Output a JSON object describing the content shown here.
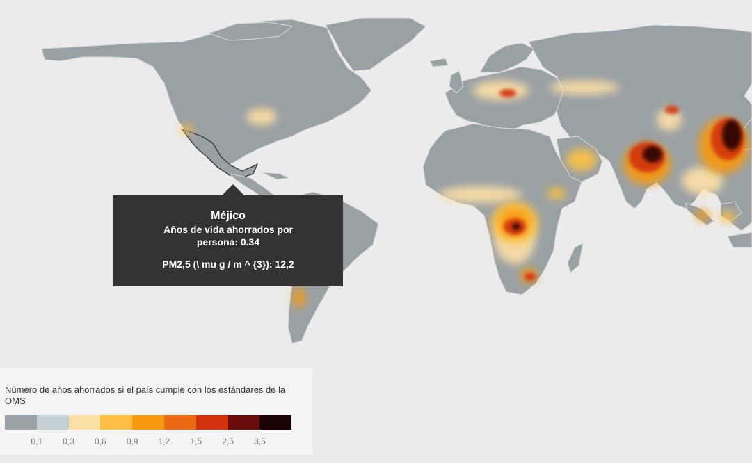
{
  "map": {
    "background_color": "#ebebeb",
    "land_color": "#9aa1a4",
    "border_color": "#d9dcdd",
    "highlighted_country": "Méjico"
  },
  "tooltip": {
    "country": "Méjico",
    "years_line1": "Años de vida ahorrados por",
    "years_line2": "persona: 0.34",
    "pm_line": "PM2,5 (\\ mu g / m ^ {3}): 12,2"
  },
  "legend": {
    "title": "Número de años ahorrados si el país cumple con los estándares de la OMS",
    "colors": [
      "#9aa1a4",
      "#c5d0d4",
      "#fde0a6",
      "#fcc144",
      "#f89a10",
      "#ec6b12",
      "#d2330e",
      "#6a0c0c",
      "#1b0303"
    ],
    "ticks": [
      "0,1",
      "0,3",
      "0,6",
      "0,9",
      "1,2",
      "1,5",
      "2,5",
      "3,5"
    ]
  }
}
